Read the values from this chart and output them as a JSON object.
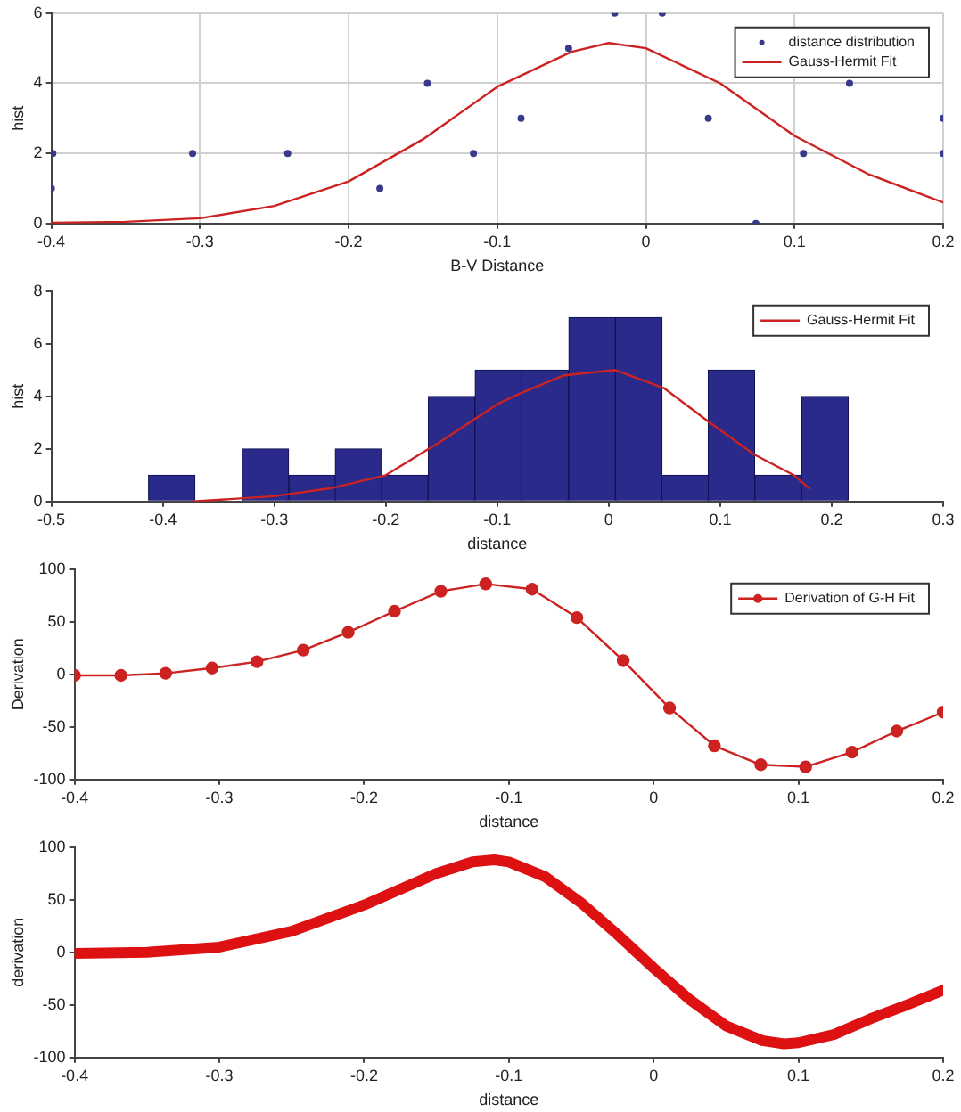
{
  "chart_data": [
    {
      "type": "scatter",
      "xlabel": "B-V Distance",
      "ylabel": "hist",
      "xlim": [
        -0.4,
        0.2
      ],
      "xticks": [
        -0.4,
        -0.3,
        -0.2,
        -0.1,
        0,
        0.1,
        0.2
      ],
      "ylim": [
        0,
        6
      ],
      "yticks": [
        0,
        2,
        4,
        6
      ],
      "grid": true,
      "legend": "top right",
      "series": [
        {
          "name": "distance distribution",
          "type": "scatter",
          "color": "#3a3a8c",
          "x": [
            -0.4,
            -0.399,
            -0.305,
            -0.241,
            -0.179,
            -0.147,
            -0.116,
            -0.084,
            -0.052,
            -0.021,
            0.011,
            0.042,
            0.074,
            0.106,
            0.137,
            0.2,
            0.2
          ],
          "values": [
            1,
            2,
            2,
            2,
            1,
            4,
            2,
            3,
            5,
            6,
            6,
            3,
            0,
            2,
            4,
            3,
            2
          ]
        },
        {
          "name": "Gauss-Hermit Fit",
          "type": "line",
          "color": "#cc2222",
          "x": [
            -0.4,
            -0.35,
            -0.3,
            -0.25,
            -0.2,
            -0.15,
            -0.1,
            -0.05,
            -0.025,
            0,
            0.05,
            0.1,
            0.15,
            0.2
          ],
          "values": [
            0.02,
            0.05,
            0.15,
            0.5,
            1.2,
            2.4,
            3.9,
            4.9,
            5.15,
            5.0,
            4.0,
            2.5,
            1.4,
            0.6
          ]
        }
      ]
    },
    {
      "type": "histogram",
      "xlabel": "distance",
      "ylabel": "hist",
      "xlim": [
        -0.5,
        0.3
      ],
      "xticks": [
        -0.5,
        -0.4,
        -0.3,
        -0.2,
        -0.1,
        0,
        0.1,
        0.2,
        0.3
      ],
      "ylim": [
        0,
        8
      ],
      "yticks": [
        0,
        2,
        4,
        6,
        8
      ],
      "legend": "top right",
      "color": "#2a2a8a",
      "bins": [
        -0.413,
        -0.371,
        -0.329,
        -0.287,
        -0.245,
        -0.204,
        -0.162,
        -0.12,
        -0.078,
        -0.036,
        0.006,
        0.048,
        0.089,
        0.131,
        0.173,
        0.215
      ],
      "values": [
        1,
        0,
        2,
        1,
        2,
        1,
        4,
        5,
        5,
        7,
        7,
        1,
        5,
        1,
        4
      ],
      "series": [
        {
          "name": "Gauss-Hermit Fit",
          "type": "line",
          "color": "#cc2222",
          "x": [
            -0.373,
            -0.3,
            -0.25,
            -0.2,
            -0.15,
            -0.1,
            -0.08,
            -0.04,
            0.006,
            0.05,
            0.089,
            0.13,
            0.166,
            0.18
          ],
          "values": [
            0,
            0.2,
            0.5,
            1.0,
            2.3,
            3.7,
            4.1,
            4.8,
            5.0,
            4.3,
            3.05,
            1.8,
            1.0,
            0.5
          ]
        }
      ]
    },
    {
      "type": "line",
      "xlabel": "distance",
      "ylabel": "Derivation",
      "xlim": [
        -0.4,
        0.2
      ],
      "xticks": [
        -0.4,
        -0.3,
        -0.2,
        -0.1,
        0,
        0.1,
        0.2
      ],
      "ylim": [
        -100,
        100
      ],
      "yticks": [
        -100,
        -50,
        0,
        50,
        100
      ],
      "legend": "top right",
      "marker": "circle",
      "series": [
        {
          "name": "Derivation of G-H Fit",
          "color": "#cc2222",
          "x": [
            -0.4,
            -0.368,
            -0.337,
            -0.305,
            -0.274,
            -0.242,
            -0.211,
            -0.179,
            -0.147,
            -0.116,
            -0.084,
            -0.053,
            -0.021,
            0.011,
            0.042,
            0.074,
            0.105,
            0.137,
            0.168,
            0.2
          ],
          "values": [
            -1,
            -1,
            1,
            6,
            12,
            23,
            40,
            60,
            79,
            86,
            81,
            54,
            13,
            -32,
            -68,
            -86,
            -88,
            -74,
            -54,
            -36
          ]
        }
      ]
    },
    {
      "type": "line",
      "xlabel": "distance",
      "ylabel": "derivation",
      "xlim": [
        -0.4,
        0.2
      ],
      "xticks": [
        -0.4,
        -0.3,
        -0.2,
        -0.1,
        0,
        0.1,
        0.2
      ],
      "ylim": [
        -100,
        100
      ],
      "yticks": [
        -100,
        -50,
        0,
        50,
        100
      ],
      "series": [
        {
          "color": "#dd1111",
          "x": [
            -0.4,
            -0.35,
            -0.3,
            -0.25,
            -0.2,
            -0.15,
            -0.125,
            -0.11,
            -0.1,
            -0.075,
            -0.05,
            -0.025,
            0,
            0.025,
            0.05,
            0.075,
            0.09,
            0.1,
            0.125,
            0.15,
            0.175,
            0.2
          ],
          "values": [
            -1,
            0,
            5,
            20,
            45,
            75,
            86,
            88,
            86,
            72,
            47,
            17,
            -15,
            -45,
            -70,
            -84,
            -87,
            -86,
            -78,
            -63,
            -50,
            -36
          ]
        }
      ]
    }
  ]
}
